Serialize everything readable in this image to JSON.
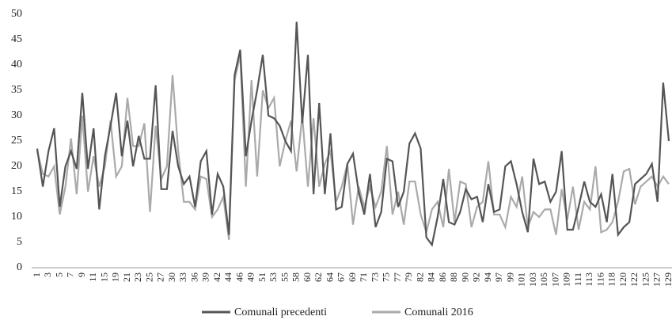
{
  "chart_data": {
    "type": "line",
    "categories": [
      "1",
      null,
      "3",
      null,
      "5",
      null,
      "7",
      null,
      "9",
      null,
      "11",
      null,
      "15",
      null,
      "19",
      null,
      "21",
      null,
      "23",
      null,
      "25",
      null,
      "27",
      null,
      "30",
      null,
      "33",
      null,
      "36",
      null,
      "39",
      null,
      "42",
      null,
      "44",
      null,
      "46",
      null,
      "49",
      null,
      "51",
      null,
      "53",
      null,
      "55",
      null,
      "58",
      null,
      "60",
      null,
      "62",
      null,
      "64",
      null,
      "67",
      null,
      "69",
      null,
      "71",
      null,
      "73",
      null,
      "75",
      null,
      "77",
      null,
      "79",
      null,
      "82",
      null,
      "84",
      null,
      "86",
      null,
      "88",
      null,
      "90",
      null,
      "92",
      null,
      "94",
      null,
      "97",
      null,
      "99",
      null,
      "101",
      null,
      "103",
      null,
      "105",
      null,
      "107",
      null,
      "109",
      null,
      "111",
      null,
      "113",
      null,
      "116",
      null,
      "118",
      null,
      "120",
      null,
      "122",
      null,
      "125",
      null,
      "127",
      null,
      "129"
    ],
    "series": [
      {
        "name": "Comunali 2016",
        "color": "#aaaaaa",
        "values": [
          23,
          18.5,
          18,
          20,
          10.5,
          16,
          25.5,
          14.5,
          30,
          15,
          22,
          16,
          20,
          29,
          18,
          20,
          33.5,
          24,
          24,
          28.5,
          11,
          28,
          17.5,
          20,
          38,
          23,
          13,
          13,
          11.5,
          18,
          17.5,
          10,
          11.5,
          14,
          5.5,
          37,
          42,
          16,
          37,
          18,
          35,
          31.5,
          33.5,
          20,
          25,
          29,
          19,
          30,
          16,
          29.5,
          16,
          20.5,
          23,
          13,
          16,
          20.5,
          8.5,
          16,
          12,
          16,
          12,
          15,
          24,
          10.5,
          15,
          8.5,
          17,
          17,
          10.5,
          7,
          11.5,
          13,
          8,
          19.5,
          9,
          17,
          16.5,
          8,
          12,
          13,
          21,
          10.5,
          10.5,
          8,
          14,
          12,
          18,
          8,
          11,
          10,
          11.5,
          11.5,
          6.5,
          15.5,
          9.5,
          16,
          7.5,
          13,
          11.5,
          20,
          7,
          7.5,
          9,
          13,
          19,
          19.5,
          12.5,
          16,
          17,
          18,
          16,
          18,
          16.5
        ]
      },
      {
        "name": "Comunali precedenti",
        "color": "#555555",
        "values": [
          23.5,
          16,
          23,
          27.5,
          12,
          20,
          23,
          19.5,
          34.5,
          19.5,
          27.5,
          11.5,
          22,
          28,
          34.5,
          22,
          29,
          20,
          26,
          21.5,
          21.5,
          36,
          15.5,
          15.5,
          27,
          20,
          16.5,
          18,
          12,
          21,
          23,
          10.5,
          18.5,
          16,
          6.5,
          38,
          43,
          22,
          29,
          35,
          42,
          30,
          29.5,
          28,
          25,
          23,
          48.5,
          28.5,
          42,
          14.5,
          32.5,
          14.5,
          26.5,
          11.5,
          12,
          20.5,
          22.5,
          15,
          10.5,
          18.5,
          8,
          11,
          21.5,
          21,
          12,
          15,
          24.5,
          26.5,
          23.5,
          6,
          4.5,
          10,
          17.5,
          9,
          8.5,
          11,
          15.5,
          13.5,
          14,
          9,
          16.5,
          11,
          11.5,
          20,
          21,
          16.5,
          11,
          7,
          21.5,
          16.5,
          17,
          13,
          15,
          23,
          7.5,
          7.5,
          12,
          17,
          13,
          12,
          14.5,
          9,
          18.5,
          6.5,
          8,
          9,
          16.5,
          17.5,
          18.5,
          20.5,
          13,
          36.5,
          25
        ]
      }
    ],
    "ylim": [
      0,
      50
    ],
    "yticks": [
      0,
      5,
      10,
      15,
      20,
      25,
      30,
      35,
      40,
      45,
      50
    ],
    "grid": false,
    "legend": "bottom"
  }
}
